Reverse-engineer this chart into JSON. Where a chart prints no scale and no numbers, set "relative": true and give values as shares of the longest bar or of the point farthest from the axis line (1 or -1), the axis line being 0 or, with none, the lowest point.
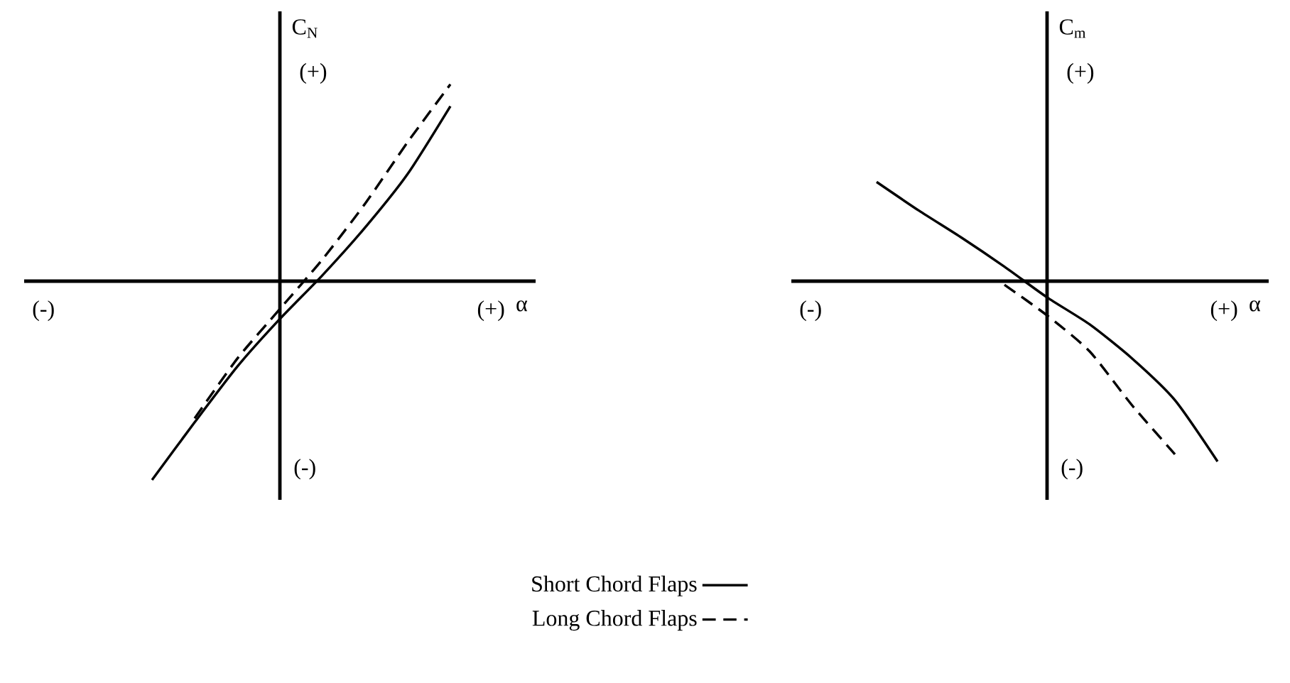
{
  "chart_data": [
    {
      "type": "line",
      "relative": true,
      "ylabel": "C$_{N}$",
      "xlabel": "α",
      "legend": "bottom",
      "categories": [
        null,
        null,
        null,
        null,
        null,
        null,
        null,
        null,
        null,
        null,
        null,
        null,
        null
      ],
      "annotations": [
        "(+)",
        "(-)",
        "(-)",
        "(+)"
      ],
      "series": [
        {
          "name": "Short Chord Flaps",
          "color": "#000000",
          "line_style": "solid",
          "values": [
            null,
            null,
            null,
            -1,
            -0.71,
            -0.43,
            -0.19,
            0.03,
            0.27,
            0.54,
            0.88,
            null,
            null
          ]
        },
        {
          "name": "Long Chord Flaps",
          "color": "#000000",
          "line_style": "dashed",
          "values": [
            null,
            null,
            null,
            null,
            -0.69,
            -0.39,
            -0.14,
            0.11,
            0.39,
            0.7,
            0.99,
            null,
            null
          ]
        }
      ]
    },
    {
      "type": "line",
      "relative": true,
      "ylabel": "C$_{m}$",
      "xlabel": "α",
      "categories": [
        null,
        null,
        null,
        null,
        null,
        null,
        null,
        null,
        null,
        null,
        null,
        null
      ],
      "annotations": [
        "(+)",
        "(-)",
        "(-)",
        "(+)"
      ],
      "series": [
        {
          "color": "#000000",
          "line_style": "solid",
          "values": [
            null,
            null,
            0.55,
            0.39,
            0.24,
            0.08,
            -0.09,
            -0.24,
            -0.43,
            -0.66,
            -1,
            null
          ]
        },
        {
          "color": "#000000",
          "line_style": "dashed",
          "values": [
            null,
            null,
            null,
            null,
            null,
            -0.02,
            -0.19,
            -0.39,
            -0.69,
            -0.96,
            null,
            null
          ]
        }
      ]
    }
  ]
}
